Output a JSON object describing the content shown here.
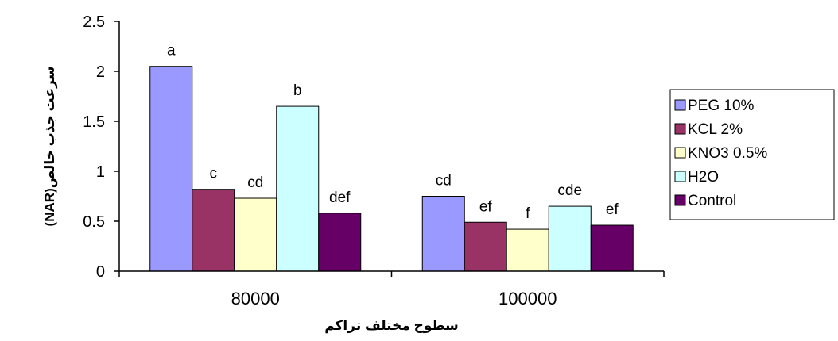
{
  "chart_data": {
    "type": "bar",
    "categories": [
      "80000",
      "100000"
    ],
    "series": [
      {
        "name": "PEG 10%",
        "color": "#9999ff",
        "values": [
          2.05,
          0.75
        ],
        "labels": [
          "a",
          "cd"
        ]
      },
      {
        "name": "KCL 2%",
        "color": "#993366",
        "values": [
          0.82,
          0.49
        ],
        "labels": [
          "c",
          "ef"
        ]
      },
      {
        "name": "KNO3 0.5%",
        "color": "#ffffcc",
        "values": [
          0.73,
          0.42
        ],
        "labels": [
          "cd",
          "f"
        ]
      },
      {
        "name": "H2O",
        "color": "#ccffff",
        "values": [
          1.65,
          0.65
        ],
        "labels": [
          "b",
          "cde"
        ]
      },
      {
        "name": "Control",
        "color": "#660066",
        "values": [
          0.58,
          0.46
        ],
        "labels": [
          "def",
          "ef"
        ]
      }
    ],
    "ylim": [
      0,
      2.5
    ],
    "yticks": [
      "0",
      "0.5",
      "1",
      "1.5",
      "2",
      "2.5"
    ],
    "xlabel": "سطوح مختلف تراکم",
    "ylabel": "سرعت جذب خالص(NAR)",
    "grid": false,
    "legend_position": "right"
  }
}
